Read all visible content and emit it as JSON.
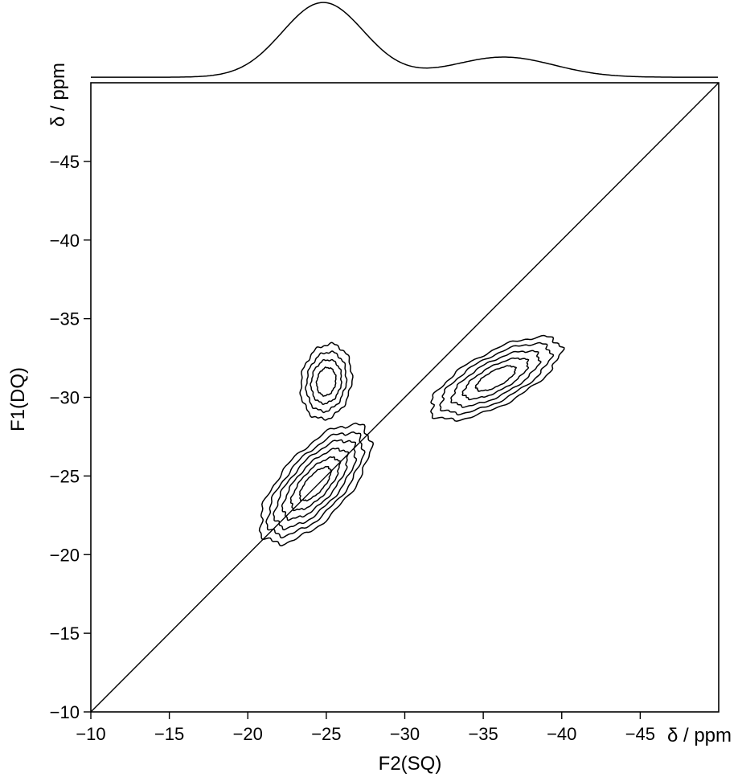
{
  "chart_data": {
    "type": "contour",
    "xlabel": "F2(SQ)",
    "ylabel": "F1(DQ)",
    "x_unit_label": "δ / ppm",
    "y_unit_label": "δ / ppm",
    "xlim": [
      -10,
      -50
    ],
    "ylim": [
      -10,
      -50
    ],
    "x_ticks": [
      -10,
      -15,
      -20,
      -25,
      -30,
      -35,
      -40,
      -45
    ],
    "y_ticks": [
      -10,
      -15,
      -20,
      -25,
      -30,
      -35,
      -40,
      -45
    ],
    "x_tick_labels": [
      "−10",
      "−15",
      "−20",
      "−25",
      "−30",
      "−35",
      "−40",
      "−45"
    ],
    "y_tick_labels": [
      "−10",
      "−15",
      "−20",
      "−25",
      "−30",
      "−35",
      "−40",
      "−45"
    ],
    "diagonal": {
      "from": [
        -10,
        -10
      ],
      "to": [
        -50,
        -50
      ]
    },
    "projection": {
      "axis": "F2",
      "peaks": [
        {
          "position": -24.8,
          "relative_height": 1.0,
          "width": 2.6
        },
        {
          "position": -36.3,
          "relative_height": 0.27,
          "width": 3.2
        }
      ],
      "baseline_offset": 0.02
    },
    "contour_peaks": [
      {
        "name": "diagonal peak",
        "center": [
          -24.3,
          -24.5
        ],
        "levels": [
          {
            "rx": 4.7,
            "ry": 2.1,
            "angle": 48
          },
          {
            "rx": 4.1,
            "ry": 1.75,
            "angle": 48
          },
          {
            "rx": 3.5,
            "ry": 1.45,
            "angle": 48
          },
          {
            "rx": 2.8,
            "ry": 1.15,
            "angle": 48
          },
          {
            "rx": 2.1,
            "ry": 0.85,
            "angle": 48
          },
          {
            "rx": 1.35,
            "ry": 0.55,
            "angle": 48
          }
        ]
      },
      {
        "name": "upper cross peak",
        "center": [
          -25.0,
          -31.0
        ],
        "levels": [
          {
            "rx": 2.4,
            "ry": 1.6,
            "angle": 80
          },
          {
            "rx": 1.9,
            "ry": 1.25,
            "angle": 80
          },
          {
            "rx": 1.4,
            "ry": 0.95,
            "angle": 80
          },
          {
            "rx": 0.9,
            "ry": 0.6,
            "angle": 80
          }
        ]
      },
      {
        "name": "right cross peak",
        "center": [
          -35.8,
          -31.2
        ],
        "levels": [
          {
            "rx": 4.6,
            "ry": 1.7,
            "angle": 28
          },
          {
            "rx": 3.9,
            "ry": 1.4,
            "angle": 28
          },
          {
            "rx": 3.1,
            "ry": 1.1,
            "angle": 28
          },
          {
            "rx": 2.3,
            "ry": 0.8,
            "angle": 28
          },
          {
            "rx": 1.4,
            "ry": 0.5,
            "angle": 28
          }
        ]
      }
    ],
    "grid": false,
    "legend": "none"
  }
}
